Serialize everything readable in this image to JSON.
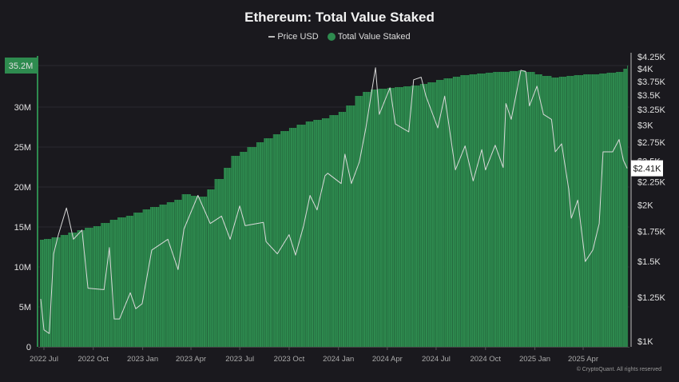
{
  "chart_data": {
    "type": "bar+line",
    "title": "Ethereum: Total Value Staked",
    "legend": [
      "Price USD",
      "Total Value Staked"
    ],
    "legend_placement": "top-center",
    "colors": {
      "bars": "#2e8b4f",
      "price": "#d9d9d9",
      "background": "#1a191e"
    },
    "grid": true,
    "left_axis": {
      "ticks": [
        "0",
        "5M",
        "10M",
        "15M",
        "20M",
        "25M",
        "30M"
      ],
      "tick_values": [
        0,
        5,
        10,
        15,
        20,
        25,
        30
      ],
      "unit": "M",
      "ylim": [
        0,
        35.2
      ],
      "current_label": "35.2M"
    },
    "right_axis": {
      "scale": "log",
      "ticks": [
        "$1K",
        "$1.25K",
        "$1.5K",
        "$1.75K",
        "$2K",
        "$2.25K",
        "$2.5K",
        "$2.75K",
        "$3K",
        "$3.25K",
        "$3.5K",
        "$3.75K",
        "$4K",
        "$4.25K"
      ],
      "tick_values": [
        1,
        1.25,
        1.5,
        1.75,
        2,
        2.25,
        2.5,
        2.75,
        3,
        3.25,
        3.5,
        3.75,
        4,
        4.25
      ],
      "ylim": [
        1,
        4.25
      ],
      "current_label": "$2.41K"
    },
    "x_ticks": [
      {
        "label": "2022 Jul",
        "date": "2022-07-01"
      },
      {
        "label": "2022 Oct",
        "date": "2022-10-01"
      },
      {
        "label": "2023 Jan",
        "date": "2023-01-01"
      },
      {
        "label": "2023 Apr",
        "date": "2023-04-01"
      },
      {
        "label": "2023 Jul",
        "date": "2023-07-01"
      },
      {
        "label": "2023 Oct",
        "date": "2023-10-01"
      },
      {
        "label": "2024 Jan",
        "date": "2024-01-01"
      },
      {
        "label": "2024 Apr",
        "date": "2024-04-01"
      },
      {
        "label": "2024 Jul",
        "date": "2024-07-01"
      },
      {
        "label": "2024 Oct",
        "date": "2024-10-01"
      },
      {
        "label": "2025 Jan",
        "date": "2025-01-01"
      },
      {
        "label": "2025 Apr",
        "date": "2025-04-01"
      }
    ],
    "tvs_millions": [
      [
        "2022-06-23",
        13.4
      ],
      [
        "2022-07-01",
        13.5
      ],
      [
        "2022-07-15",
        13.7
      ],
      [
        "2022-08-01",
        14.0
      ],
      [
        "2022-08-15",
        14.3
      ],
      [
        "2022-09-01",
        14.6
      ],
      [
        "2022-09-15",
        14.9
      ],
      [
        "2022-10-01",
        15.1
      ],
      [
        "2022-10-15",
        15.5
      ],
      [
        "2022-11-01",
        15.9
      ],
      [
        "2022-11-15",
        16.2
      ],
      [
        "2022-12-01",
        16.4
      ],
      [
        "2022-12-15",
        16.8
      ],
      [
        "2023-01-01",
        17.2
      ],
      [
        "2023-01-15",
        17.5
      ],
      [
        "2023-02-01",
        17.8
      ],
      [
        "2023-02-15",
        18.1
      ],
      [
        "2023-03-01",
        18.4
      ],
      [
        "2023-03-15",
        19.1
      ],
      [
        "2023-04-01",
        18.9
      ],
      [
        "2023-04-15",
        18.8
      ],
      [
        "2023-05-01",
        19.7
      ],
      [
        "2023-05-15",
        21.0
      ],
      [
        "2023-06-01",
        22.4
      ],
      [
        "2023-06-15",
        23.9
      ],
      [
        "2023-07-01",
        24.4
      ],
      [
        "2023-07-15",
        25.0
      ],
      [
        "2023-08-01",
        25.6
      ],
      [
        "2023-08-15",
        26.1
      ],
      [
        "2023-09-01",
        26.6
      ],
      [
        "2023-09-15",
        27.0
      ],
      [
        "2023-10-01",
        27.4
      ],
      [
        "2023-10-15",
        27.8
      ],
      [
        "2023-11-01",
        28.2
      ],
      [
        "2023-11-15",
        28.4
      ],
      [
        "2023-12-01",
        28.6
      ],
      [
        "2023-12-15",
        29.0
      ],
      [
        "2024-01-01",
        29.4
      ],
      [
        "2024-01-15",
        30.2
      ],
      [
        "2024-02-01",
        31.4
      ],
      [
        "2024-02-15",
        31.9
      ],
      [
        "2024-03-01",
        32.2
      ],
      [
        "2024-03-15",
        32.3
      ],
      [
        "2024-04-01",
        32.4
      ],
      [
        "2024-04-15",
        32.5
      ],
      [
        "2024-05-01",
        32.6
      ],
      [
        "2024-05-15",
        32.7
      ],
      [
        "2024-06-01",
        32.9
      ],
      [
        "2024-06-15",
        33.1
      ],
      [
        "2024-07-01",
        33.4
      ],
      [
        "2024-07-15",
        33.6
      ],
      [
        "2024-08-01",
        33.8
      ],
      [
        "2024-08-15",
        34.0
      ],
      [
        "2024-09-01",
        34.1
      ],
      [
        "2024-09-15",
        34.2
      ],
      [
        "2024-10-01",
        34.3
      ],
      [
        "2024-10-15",
        34.4
      ],
      [
        "2024-11-01",
        34.4
      ],
      [
        "2024-11-15",
        34.5
      ],
      [
        "2024-12-01",
        34.6
      ],
      [
        "2024-12-15",
        34.4
      ],
      [
        "2025-01-01",
        34.1
      ],
      [
        "2025-01-15",
        33.9
      ],
      [
        "2025-02-01",
        33.7
      ],
      [
        "2025-02-15",
        33.8
      ],
      [
        "2025-03-01",
        33.9
      ],
      [
        "2025-03-15",
        34.0
      ],
      [
        "2025-04-01",
        34.1
      ],
      [
        "2025-04-15",
        34.1
      ],
      [
        "2025-05-01",
        34.2
      ],
      [
        "2025-05-15",
        34.3
      ],
      [
        "2025-06-01",
        34.4
      ],
      [
        "2025-06-15",
        34.8
      ],
      [
        "2025-06-22",
        35.2
      ]
    ],
    "price_usd_thousands": [
      [
        "2022-06-25",
        1.24
      ],
      [
        "2022-07-01",
        1.06
      ],
      [
        "2022-07-11",
        1.04
      ],
      [
        "2022-07-19",
        1.56
      ],
      [
        "2022-07-28",
        1.72
      ],
      [
        "2022-08-12",
        1.97
      ],
      [
        "2022-08-25",
        1.68
      ],
      [
        "2022-09-10",
        1.76
      ],
      [
        "2022-09-21",
        1.31
      ],
      [
        "2022-10-21",
        1.3
      ],
      [
        "2022-10-31",
        1.61
      ],
      [
        "2022-11-09",
        1.12
      ],
      [
        "2022-11-19",
        1.12
      ],
      [
        "2022-12-09",
        1.28
      ],
      [
        "2022-12-19",
        1.18
      ],
      [
        "2022-12-31",
        1.21
      ],
      [
        "2023-01-18",
        1.59
      ],
      [
        "2023-02-17",
        1.68
      ],
      [
        "2023-03-08",
        1.44
      ],
      [
        "2023-03-19",
        1.77
      ],
      [
        "2023-04-14",
        2.1
      ],
      [
        "2023-05-07",
        1.82
      ],
      [
        "2023-05-28",
        1.89
      ],
      [
        "2023-06-13",
        1.68
      ],
      [
        "2023-07-01",
        1.99
      ],
      [
        "2023-07-11",
        1.8
      ],
      [
        "2023-08-14",
        1.83
      ],
      [
        "2023-08-19",
        1.66
      ],
      [
        "2023-09-09",
        1.56
      ],
      [
        "2023-10-01",
        1.72
      ],
      [
        "2023-10-13",
        1.55
      ],
      [
        "2023-10-28",
        1.8
      ],
      [
        "2023-11-09",
        2.1
      ],
      [
        "2023-11-22",
        1.95
      ],
      [
        "2023-12-07",
        2.32
      ],
      [
        "2023-12-12",
        2.35
      ],
      [
        "2024-01-06",
        2.23
      ],
      [
        "2024-01-13",
        2.59
      ],
      [
        "2024-01-25",
        2.23
      ],
      [
        "2024-02-09",
        2.49
      ],
      [
        "2024-02-21",
        2.96
      ],
      [
        "2024-03-10",
        4.02
      ],
      [
        "2024-03-17",
        3.17
      ],
      [
        "2024-04-06",
        3.63
      ],
      [
        "2024-04-16",
        3.02
      ],
      [
        "2024-05-11",
        2.9
      ],
      [
        "2024-05-20",
        3.78
      ],
      [
        "2024-06-03",
        3.83
      ],
      [
        "2024-06-12",
        3.48
      ],
      [
        "2024-07-04",
        2.96
      ],
      [
        "2024-07-17",
        3.48
      ],
      [
        "2024-08-06",
        2.39
      ],
      [
        "2024-08-24",
        2.7
      ],
      [
        "2024-09-08",
        2.26
      ],
      [
        "2024-09-24",
        2.65
      ],
      [
        "2024-10-01",
        2.39
      ],
      [
        "2024-10-19",
        2.71
      ],
      [
        "2024-11-03",
        2.42
      ],
      [
        "2024-11-08",
        3.35
      ],
      [
        "2024-11-18",
        3.09
      ],
      [
        "2024-12-06",
        3.97
      ],
      [
        "2024-12-15",
        3.94
      ],
      [
        "2024-12-22",
        3.31
      ],
      [
        "2025-01-05",
        3.66
      ],
      [
        "2025-01-17",
        3.17
      ],
      [
        "2025-02-01",
        3.09
      ],
      [
        "2025-02-08",
        2.62
      ],
      [
        "2025-02-20",
        2.73
      ],
      [
        "2025-03-05",
        2.17
      ],
      [
        "2025-03-10",
        1.87
      ],
      [
        "2025-03-22",
        2.05
      ],
      [
        "2025-04-05",
        1.5
      ],
      [
        "2025-04-19",
        1.59
      ],
      [
        "2025-05-01",
        1.82
      ],
      [
        "2025-05-08",
        2.62
      ],
      [
        "2025-05-26",
        2.62
      ],
      [
        "2025-06-07",
        2.79
      ],
      [
        "2025-06-15",
        2.51
      ],
      [
        "2025-06-22",
        2.41
      ]
    ]
  },
  "footer": "© CryptoQuant. All rights reserved"
}
